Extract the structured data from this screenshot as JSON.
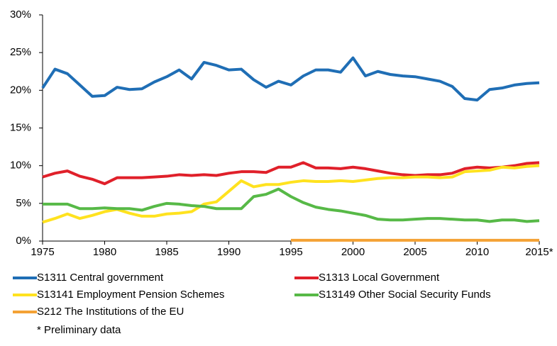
{
  "chart_data": {
    "type": "line",
    "x": [
      1975,
      1976,
      1977,
      1978,
      1979,
      1980,
      1981,
      1982,
      1983,
      1984,
      1985,
      1986,
      1987,
      1988,
      1989,
      1990,
      1991,
      1992,
      1993,
      1994,
      1995,
      1996,
      1997,
      1998,
      1999,
      2000,
      2001,
      2002,
      2003,
      2004,
      2005,
      2006,
      2007,
      2008,
      2009,
      2010,
      2011,
      2012,
      2013,
      2014,
      2015
    ],
    "series": [
      {
        "name": "S1311 Central government",
        "color": "#1f6eb5",
        "values": [
          20.3,
          22.8,
          22.2,
          20.7,
          19.2,
          19.3,
          20.4,
          20.1,
          20.2,
          21.1,
          21.8,
          22.7,
          21.5,
          23.7,
          23.3,
          22.7,
          22.8,
          21.4,
          20.4,
          21.2,
          20.7,
          21.9,
          22.7,
          22.7,
          22.4,
          24.3,
          21.9,
          22.5,
          22.1,
          21.9,
          21.8,
          21.5,
          21.2,
          20.5,
          18.9,
          18.7,
          20.1,
          20.3,
          20.7,
          20.9,
          21.0
        ]
      },
      {
        "name": "S1313 Local Government",
        "color": "#e0202a",
        "values": [
          8.5,
          9.0,
          9.3,
          8.6,
          8.2,
          7.6,
          8.4,
          8.4,
          8.4,
          8.5,
          8.6,
          8.8,
          8.7,
          8.8,
          8.7,
          9.0,
          9.2,
          9.2,
          9.1,
          9.8,
          9.8,
          10.4,
          9.7,
          9.7,
          9.6,
          9.8,
          9.6,
          9.3,
          9.0,
          8.8,
          8.7,
          8.8,
          8.8,
          9.0,
          9.6,
          9.8,
          9.7,
          9.8,
          10.0,
          10.3,
          10.4
        ]
      },
      {
        "name": "S13141 Employment Pension Schemes",
        "color": "#ffe21f",
        "values": [
          2.5,
          3.0,
          3.6,
          3.0,
          3.4,
          3.9,
          4.2,
          3.7,
          3.3,
          3.3,
          3.6,
          3.7,
          3.9,
          4.9,
          5.2,
          6.6,
          8.0,
          7.2,
          7.5,
          7.5,
          7.8,
          8.0,
          7.9,
          7.9,
          8.0,
          7.9,
          8.1,
          8.3,
          8.4,
          8.4,
          8.5,
          8.5,
          8.4,
          8.5,
          9.2,
          9.3,
          9.4,
          9.8,
          9.7,
          9.9,
          10.0
        ]
      },
      {
        "name": "S13149 Other Social Security Funds",
        "color": "#57b947",
        "values": [
          4.9,
          4.9,
          4.9,
          4.3,
          4.3,
          4.4,
          4.3,
          4.3,
          4.1,
          4.6,
          5.0,
          4.9,
          4.7,
          4.6,
          4.3,
          4.3,
          4.3,
          5.9,
          6.2,
          6.9,
          5.9,
          5.1,
          4.5,
          4.2,
          4.0,
          3.7,
          3.4,
          2.9,
          2.8,
          2.8,
          2.9,
          3.0,
          3.0,
          2.9,
          2.8,
          2.8,
          2.6,
          2.8,
          2.8,
          2.6,
          2.7
        ]
      },
      {
        "name": "S212 The Institutions of the EU",
        "color": "#f4a235",
        "values": [
          null,
          null,
          null,
          null,
          null,
          null,
          null,
          null,
          null,
          null,
          null,
          null,
          null,
          null,
          null,
          null,
          null,
          null,
          null,
          null,
          0.1,
          0.1,
          0.1,
          0.1,
          0.1,
          0.1,
          0.1,
          0.1,
          0.1,
          0.1,
          0.1,
          0.1,
          0.1,
          0.1,
          0.1,
          0.1,
          0.1,
          0.1,
          0.1,
          0.1,
          0.1
        ]
      }
    ],
    "xlim": [
      1975,
      2015
    ],
    "xticks": [
      1975,
      1980,
      1985,
      1990,
      1995,
      2000,
      2005,
      2010,
      {
        "value": 2015,
        "label": "2015*"
      }
    ],
    "ylim": [
      0,
      30
    ],
    "yticks": [
      {
        "value": 0,
        "label": "0%"
      },
      {
        "value": 5,
        "label": "5%"
      },
      {
        "value": 10,
        "label": "10%"
      },
      {
        "value": 15,
        "label": "15%"
      },
      {
        "value": 20,
        "label": "20%"
      },
      {
        "value": 25,
        "label": "25%"
      },
      {
        "value": 30,
        "label": "30%"
      }
    ],
    "note": "* Preliminary data"
  }
}
